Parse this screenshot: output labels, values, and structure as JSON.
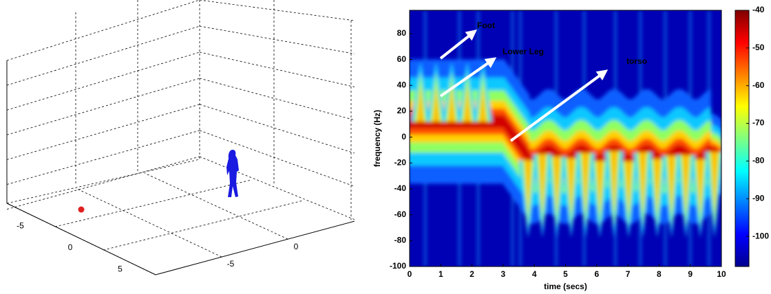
{
  "chart_data": [
    {
      "type": "scene3d",
      "xticks": [
        -5,
        0,
        5
      ],
      "yticks": [
        -5,
        0
      ]
    },
    {
      "type": "spectrogram",
      "xlabel": "time (secs)",
      "ylabel": "frequency (Hz)",
      "xlim": [
        0,
        10
      ],
      "ylim": [
        -100,
        98
      ],
      "xticks": [
        0,
        1,
        2,
        3,
        4,
        5,
        6,
        7,
        8,
        9,
        10
      ],
      "yticks": [
        -100,
        -80,
        -60,
        -40,
        -20,
        0,
        20,
        40,
        60,
        80
      ],
      "colorbar": {
        "clim": [
          -108,
          -40
        ],
        "ticks": [
          -100,
          -90,
          -80,
          -70,
          -60,
          -50,
          -40
        ],
        "colormap": "jet"
      },
      "annotations": [
        {
          "text": "Foot"
        },
        {
          "text": "Lower Leg"
        },
        {
          "text": "torso"
        }
      ]
    }
  ]
}
